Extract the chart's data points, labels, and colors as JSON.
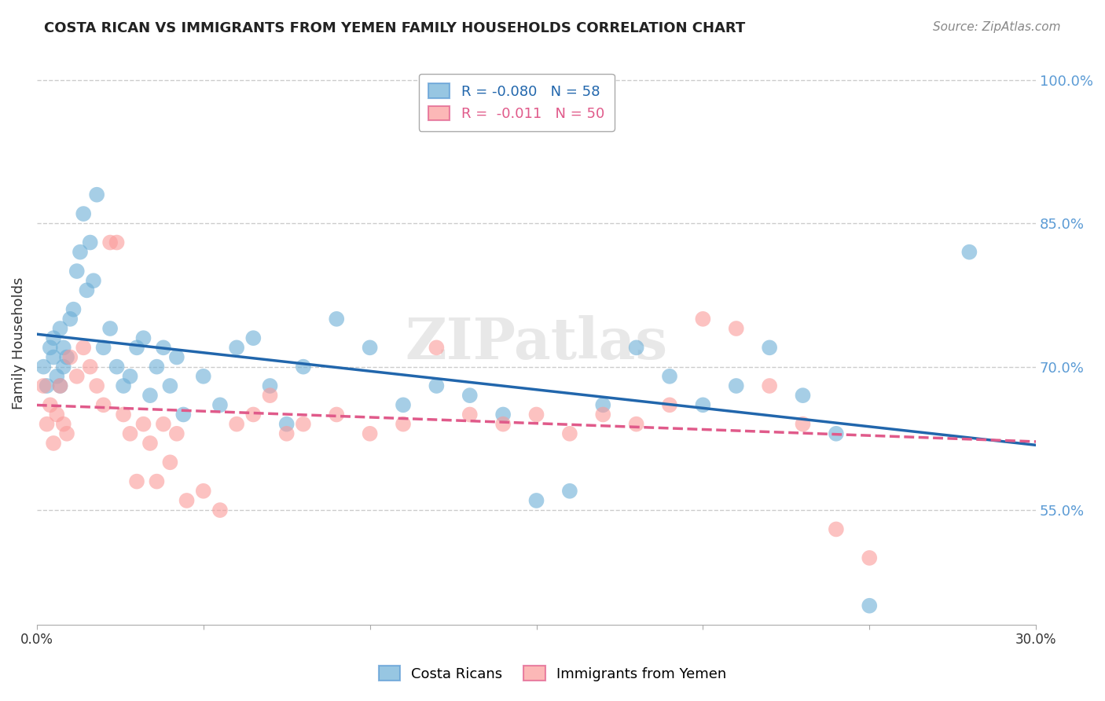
{
  "title": "COSTA RICAN VS IMMIGRANTS FROM YEMEN FAMILY HOUSEHOLDS CORRELATION CHART",
  "source": "Source: ZipAtlas.com",
  "xlabel": "",
  "ylabel": "Family Households",
  "x_min": 0.0,
  "x_max": 0.3,
  "y_min": 0.43,
  "y_max": 1.02,
  "y_ticks": [
    0.55,
    0.7,
    0.85,
    1.0
  ],
  "y_tick_labels": [
    "55.0%",
    "70.0%",
    "85.0%",
    "100.0%"
  ],
  "x_ticks": [
    0.0,
    0.05,
    0.1,
    0.15,
    0.2,
    0.25,
    0.3
  ],
  "x_tick_labels": [
    "0.0%",
    "",
    "",
    "",
    "",
    "",
    "30.0%"
  ],
  "blue_R": -0.08,
  "blue_N": 58,
  "pink_R": -0.011,
  "pink_N": 50,
  "blue_color": "#6baed6",
  "pink_color": "#fb9a99",
  "blue_line_color": "#2166ac",
  "pink_line_color": "#e05a8a",
  "legend_label_blue": "Costa Ricans",
  "legend_label_pink": "Immigrants from Yemen",
  "watermark": "ZIPatlas",
  "blue_x": [
    0.002,
    0.003,
    0.004,
    0.005,
    0.005,
    0.006,
    0.007,
    0.007,
    0.008,
    0.008,
    0.009,
    0.01,
    0.011,
    0.012,
    0.013,
    0.014,
    0.015,
    0.016,
    0.017,
    0.018,
    0.02,
    0.022,
    0.024,
    0.026,
    0.028,
    0.03,
    0.032,
    0.034,
    0.036,
    0.038,
    0.04,
    0.042,
    0.044,
    0.05,
    0.055,
    0.06,
    0.065,
    0.07,
    0.075,
    0.08,
    0.09,
    0.1,
    0.11,
    0.12,
    0.13,
    0.14,
    0.15,
    0.16,
    0.17,
    0.18,
    0.19,
    0.2,
    0.21,
    0.22,
    0.23,
    0.24,
    0.25,
    0.28
  ],
  "blue_y": [
    0.7,
    0.68,
    0.72,
    0.71,
    0.73,
    0.69,
    0.74,
    0.68,
    0.72,
    0.7,
    0.71,
    0.75,
    0.76,
    0.8,
    0.82,
    0.86,
    0.78,
    0.83,
    0.79,
    0.88,
    0.72,
    0.74,
    0.7,
    0.68,
    0.69,
    0.72,
    0.73,
    0.67,
    0.7,
    0.72,
    0.68,
    0.71,
    0.65,
    0.69,
    0.66,
    0.72,
    0.73,
    0.68,
    0.64,
    0.7,
    0.75,
    0.72,
    0.66,
    0.68,
    0.67,
    0.65,
    0.56,
    0.57,
    0.66,
    0.72,
    0.69,
    0.66,
    0.68,
    0.72,
    0.67,
    0.63,
    0.45,
    0.82
  ],
  "pink_x": [
    0.002,
    0.003,
    0.004,
    0.005,
    0.006,
    0.007,
    0.008,
    0.009,
    0.01,
    0.012,
    0.014,
    0.016,
    0.018,
    0.02,
    0.022,
    0.024,
    0.026,
    0.028,
    0.03,
    0.032,
    0.034,
    0.036,
    0.038,
    0.04,
    0.042,
    0.045,
    0.05,
    0.055,
    0.06,
    0.065,
    0.07,
    0.075,
    0.08,
    0.09,
    0.1,
    0.11,
    0.12,
    0.13,
    0.14,
    0.15,
    0.16,
    0.17,
    0.18,
    0.19,
    0.2,
    0.21,
    0.22,
    0.23,
    0.24,
    0.25
  ],
  "pink_y": [
    0.68,
    0.64,
    0.66,
    0.62,
    0.65,
    0.68,
    0.64,
    0.63,
    0.71,
    0.69,
    0.72,
    0.7,
    0.68,
    0.66,
    0.83,
    0.83,
    0.65,
    0.63,
    0.58,
    0.64,
    0.62,
    0.58,
    0.64,
    0.6,
    0.63,
    0.56,
    0.57,
    0.55,
    0.64,
    0.65,
    0.67,
    0.63,
    0.64,
    0.65,
    0.63,
    0.64,
    0.72,
    0.65,
    0.64,
    0.65,
    0.63,
    0.65,
    0.64,
    0.66,
    0.75,
    0.74,
    0.68,
    0.64,
    0.53,
    0.5
  ]
}
